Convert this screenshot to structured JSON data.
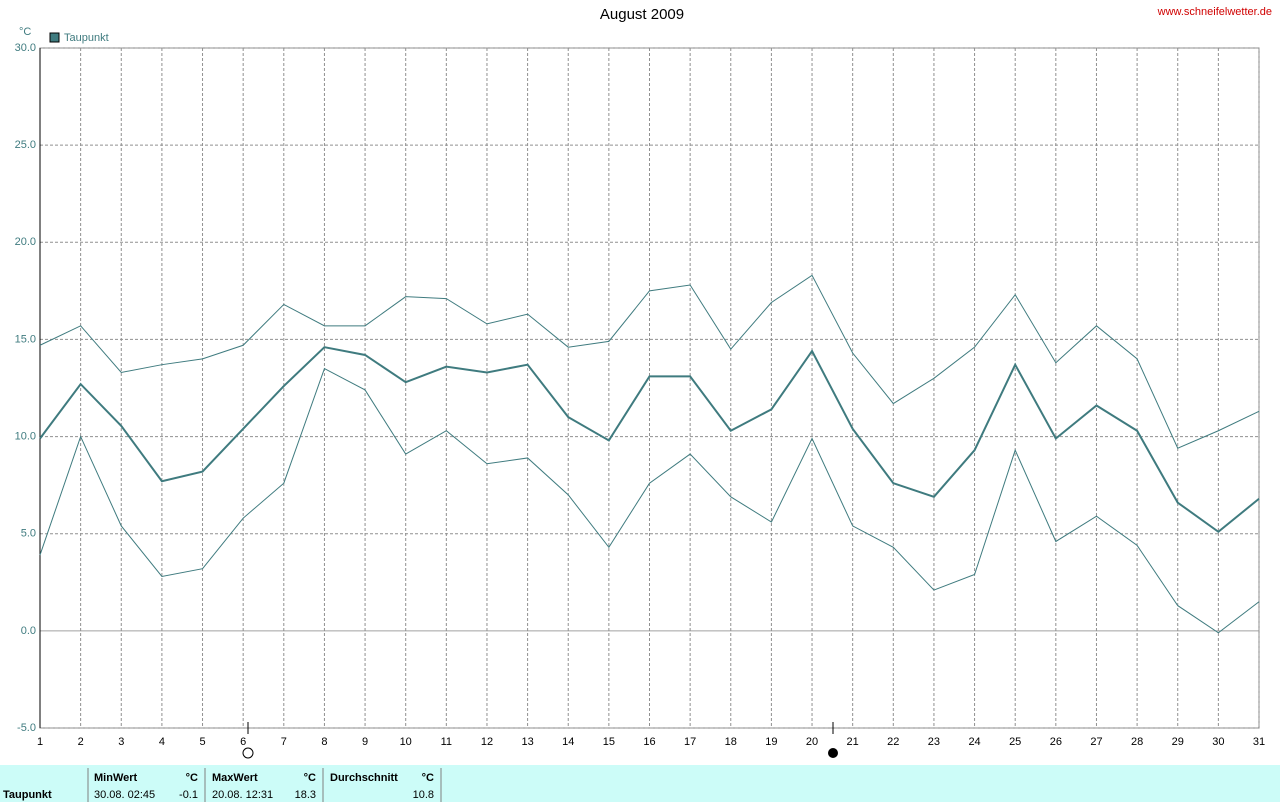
{
  "chart_data": {
    "type": "line",
    "title": "August 2009",
    "source": "www.schneifelwetter.de",
    "y_unit": "°C",
    "x": [
      1,
      2,
      3,
      4,
      5,
      6,
      7,
      8,
      9,
      10,
      11,
      12,
      13,
      14,
      15,
      16,
      17,
      18,
      19,
      20,
      21,
      22,
      23,
      24,
      25,
      26,
      27,
      28,
      29,
      30,
      31
    ],
    "xlim": [
      1,
      31
    ],
    "xticks": [
      1,
      2,
      3,
      4,
      5,
      6,
      7,
      8,
      9,
      10,
      11,
      12,
      13,
      14,
      15,
      16,
      17,
      18,
      19,
      20,
      21,
      22,
      23,
      24,
      25,
      26,
      27,
      28,
      29,
      30,
      31
    ],
    "ylim": [
      -5,
      30
    ],
    "yticks": [
      {
        "value": -5,
        "label": "-5.0"
      },
      {
        "value": 0,
        "label": "0.0"
      },
      {
        "value": 5,
        "label": "5.0"
      },
      {
        "value": 10,
        "label": "10.0"
      },
      {
        "value": 15,
        "label": "15.0"
      },
      {
        "value": 20,
        "label": "20.0"
      },
      {
        "value": 25,
        "label": "25.0"
      },
      {
        "value": 30,
        "label": "30.0"
      }
    ],
    "grid": true,
    "legend": "top-left",
    "series": [
      {
        "name": "Taupunkt",
        "color": "#3f7b7f",
        "values": [
          9.9,
          12.7,
          10.55,
          7.7,
          8.2,
          10.4,
          12.6,
          14.6,
          14.2,
          12.8,
          13.6,
          13.3,
          13.7,
          11.0,
          9.8,
          13.1,
          13.1,
          10.3,
          11.4,
          14.4,
          10.4,
          7.6,
          6.9,
          9.3,
          13.7,
          9.9,
          11.6,
          10.3,
          6.6,
          5.1,
          6.8
        ]
      },
      {
        "color": "#3f7b7f",
        "values": [
          14.7,
          15.7,
          13.3,
          13.7,
          14.0,
          14.7,
          16.8,
          15.7,
          15.7,
          17.2,
          17.1,
          15.8,
          16.3,
          14.6,
          14.9,
          17.5,
          17.8,
          14.5,
          16.9,
          18.3,
          14.3,
          11.7,
          13.0,
          14.6,
          17.3,
          13.8,
          15.7,
          14.0,
          9.4,
          10.3,
          11.3
        ]
      },
      {
        "color": "#3f7b7f",
        "values": [
          3.9,
          10.0,
          5.4,
          2.8,
          3.2,
          5.8,
          7.6,
          13.5,
          12.4,
          9.1,
          10.3,
          8.6,
          8.9,
          7.0,
          4.3,
          7.6,
          9.1,
          6.9,
          5.6,
          9.9,
          5.4,
          4.3,
          2.1,
          2.9,
          9.3,
          4.6,
          5.9,
          4.4,
          1.3,
          -0.1,
          1.5
        ]
      }
    ]
  },
  "stats": {
    "name": "Taupunkt",
    "min": {
      "label": "MinWert",
      "unit": "°C",
      "time": "30.08.  02:45",
      "value": -0.1
    },
    "max": {
      "label": "MaxWert",
      "unit": "°C",
      "time": "20.08.  12:31",
      "value": 18.3
    },
    "avg": {
      "label": "Durchschnitt",
      "unit": "°C",
      "value": 10.8
    }
  }
}
